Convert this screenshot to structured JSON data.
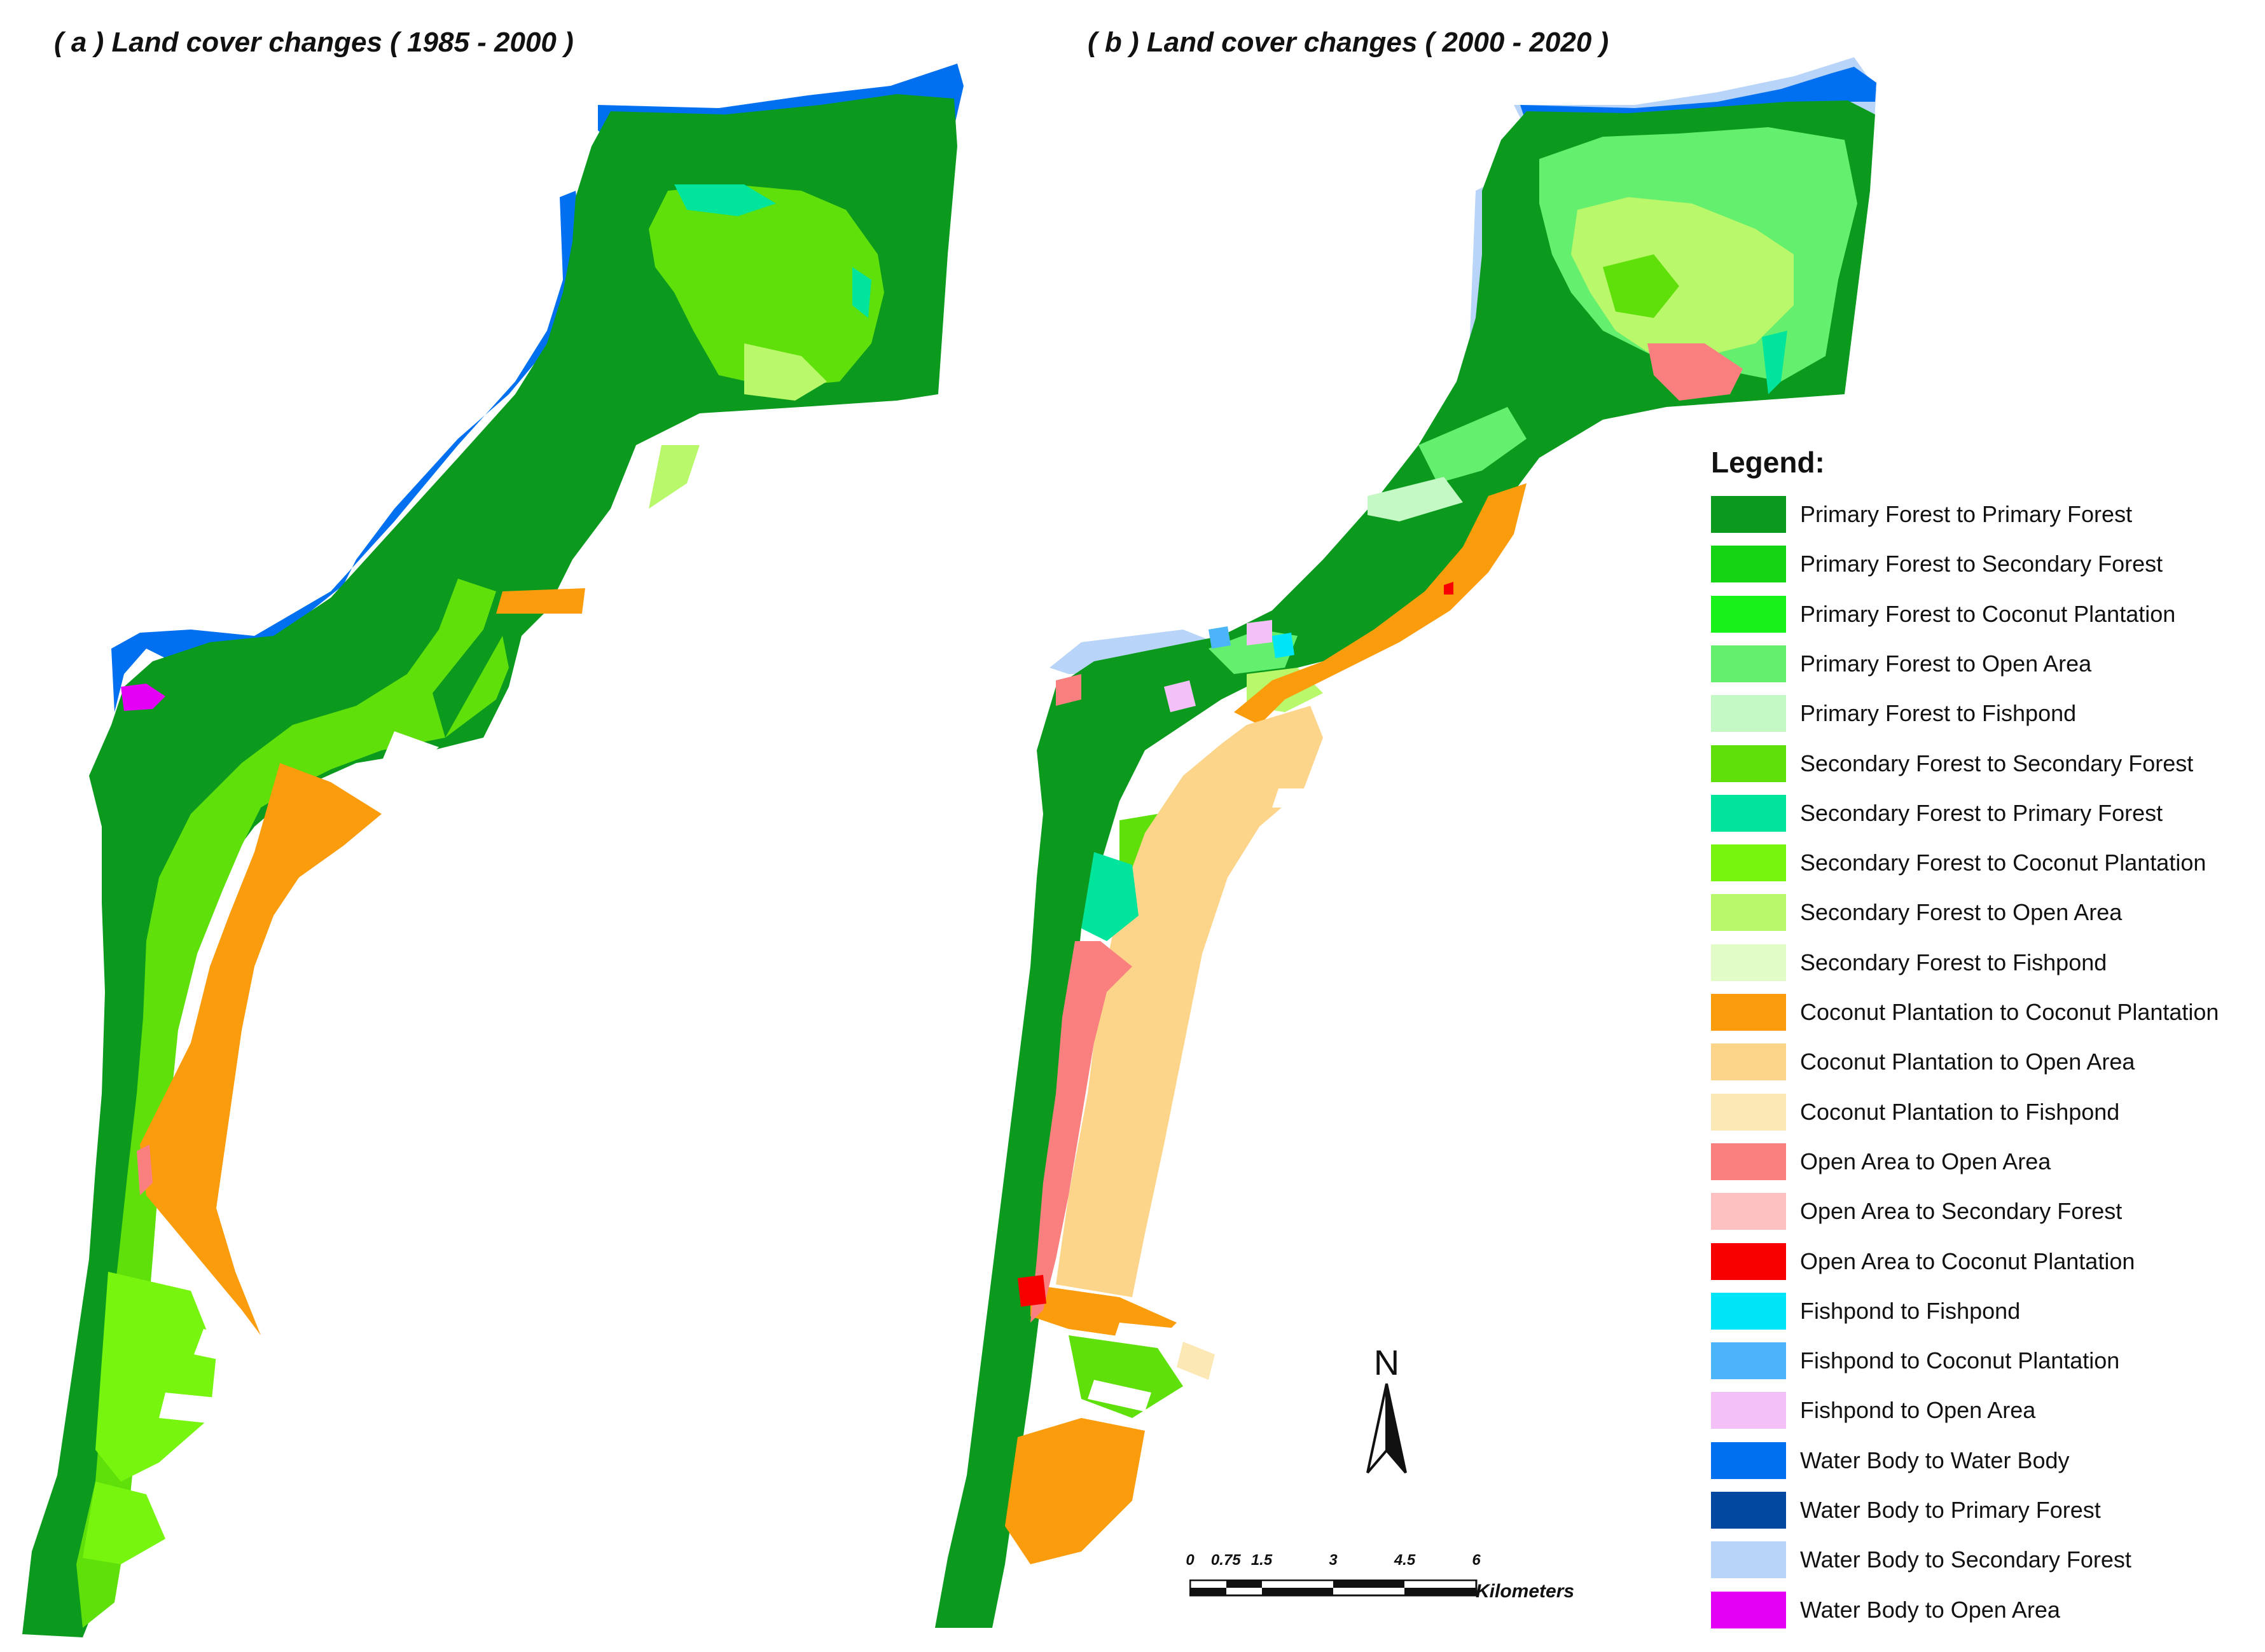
{
  "maps": {
    "a": {
      "title": "( a ) Land cover changes ( 1985 - 2000 )"
    },
    "b": {
      "title": "( b ) Land cover changes ( 2000 - 2020 )"
    }
  },
  "legend": {
    "title": "Legend:",
    "items": [
      {
        "label": "Primary Forest to Primary Forest",
        "color": "#0b9a1e"
      },
      {
        "label": "Primary Forest to Secondary Forest",
        "color": "#14d414"
      },
      {
        "label": "Primary Forest to Coconut Plantation",
        "color": "#18f21a"
      },
      {
        "label": "Primary Forest to Open Area",
        "color": "#64f06e"
      },
      {
        "label": "Primary Forest to Fishpond",
        "color": "#c4f8c4"
      },
      {
        "label": "Secondary Forest to Secondary Forest",
        "color": "#5fe00a"
      },
      {
        "label": "Secondary Forest to Primary Forest",
        "color": "#00e49c"
      },
      {
        "label": "Secondary Forest to Coconut Plantation",
        "color": "#78f50f"
      },
      {
        "label": "Secondary Forest to Open Area",
        "color": "#b8f86a"
      },
      {
        "label": "Secondary Forest to Fishpond",
        "color": "#e2fcc8"
      },
      {
        "label": "Coconut Plantation to Coconut Plantation",
        "color": "#fa9c0c"
      },
      {
        "label": "Coconut Plantation to Open Area",
        "color": "#fcd48a"
      },
      {
        "label": "Coconut Plantation to Fishpond",
        "color": "#fce8b4"
      },
      {
        "label": "Open Area to Open Area",
        "color": "#fa8080"
      },
      {
        "label": "Open Area to Secondary Forest",
        "color": "#fcc0c0"
      },
      {
        "label": "Open Area to Coconut Plantation",
        "color": "#f80000"
      },
      {
        "label": "Fishpond to Fishpond",
        "color": "#00e4f8"
      },
      {
        "label": "Fishpond to Coconut Plantation",
        "color": "#4cb4f8"
      },
      {
        "label": "Fishpond to Open Area",
        "color": "#f4c0f8"
      },
      {
        "label": "Water Body to Water Body",
        "color": "#0070f0"
      },
      {
        "label": "Water Body to Primary Forest",
        "color": "#0048a0"
      },
      {
        "label": "Water Body to Secondary Forest",
        "color": "#b8d4f8"
      },
      {
        "label": "Water Body to Open Area",
        "color": "#e400f4"
      }
    ]
  },
  "north_arrow": {
    "label": "N"
  },
  "scale_bar": {
    "ticks": [
      "0",
      "0.75",
      "1.5",
      "3",
      "4.5",
      "6"
    ],
    "unit": "Kilometers"
  }
}
